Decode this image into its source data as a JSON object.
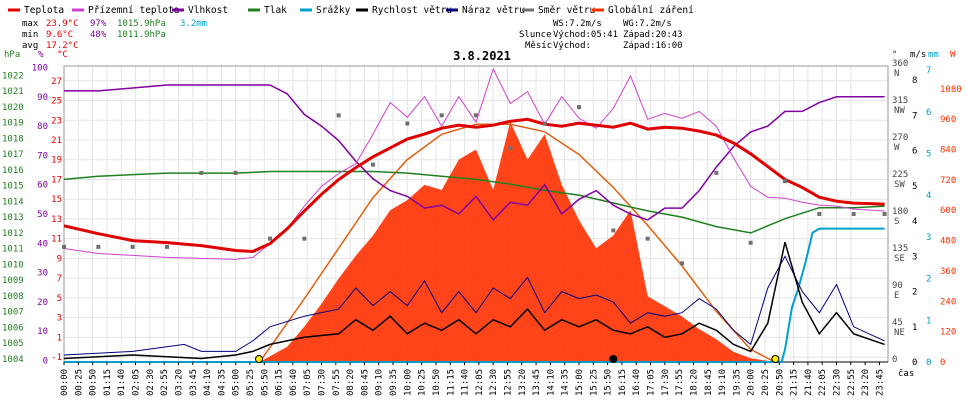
{
  "title": "3.8.2021",
  "legend": [
    {
      "label": "Teplota",
      "color": "#e00000"
    },
    {
      "label": "Přízemní teplota",
      "color": "#d040d0"
    },
    {
      "label": "Vlhkost",
      "color": "#8000a0"
    },
    {
      "label": "Tlak",
      "color": "#208020"
    },
    {
      "label": "Srážky",
      "color": "#00a0d0"
    },
    {
      "label": "Rychlost větru",
      "color": "#000000"
    },
    {
      "label": "Náraz větru",
      "color": "#000080"
    },
    {
      "label": "Směr větru",
      "color": "#707070"
    },
    {
      "label": "Globální záření",
      "color": "#ff3000"
    }
  ],
  "stats": {
    "max_label": "max",
    "max_temp": "23.9°C",
    "max_hum": "97%",
    "max_press": "1015.9hPa",
    "max_rain": "3.2mm",
    "min_label": "min",
    "min_temp": "9.6°C",
    "min_hum": "48%",
    "min_press": "1011.9hPa",
    "avg_label": "avg",
    "avg_temp": "17.2°C"
  },
  "wind_info": {
    "ws": "WS:7.2m/s",
    "wg": "WG:7.2m/s"
  },
  "sun_info": {
    "slunce": "Slunce",
    "vychod": "Východ:05:41",
    "zapad": "Západ:20:43"
  },
  "moon_info": {
    "mesic": "Měsíc",
    "vychod": "Východ:",
    "zapad": "Západ:16:00"
  },
  "x_axis_label": "čas",
  "axes": {
    "hpa_unit": "hPa",
    "pct_unit": "%",
    "temp_unit": "°C",
    "dir_unit": "°",
    "ms_unit": "m/s",
    "mm_unit": "mm",
    "w_unit": "W",
    "hpa_ticks": [
      1022,
      1021,
      1020,
      1019,
      1018,
      1017,
      1016,
      1015,
      1014,
      1013,
      1012,
      1011,
      1010,
      1009,
      1008,
      1007,
      1006,
      1005,
      1004
    ],
    "pct_ticks": [
      100,
      90,
      80,
      70,
      60,
      50,
      40,
      30,
      20,
      10,
      0
    ],
    "temp_ticks": [
      27,
      25,
      23,
      21,
      19,
      17,
      15,
      13,
      11,
      9,
      7,
      5,
      3,
      1,
      -1
    ],
    "dir_ticks": [
      {
        "deg": "360",
        "dir": "N"
      },
      {
        "deg": "315",
        "dir": "NW"
      },
      {
        "deg": "270",
        "dir": "W"
      },
      {
        "deg": "225",
        "dir": "SW"
      },
      {
        "deg": "180",
        "dir": "S"
      },
      {
        "deg": "135",
        "dir": "SE"
      },
      {
        "deg": "90",
        "dir": "E"
      },
      {
        "deg": "45",
        "dir": "NE"
      },
      {
        "deg": "0",
        "dir": ""
      }
    ],
    "ms_ticks": [
      8,
      7,
      6,
      5,
      4,
      3,
      2,
      1,
      0
    ],
    "mm_ticks": [
      7,
      6,
      5,
      4,
      3,
      2,
      1,
      0
    ],
    "w_ticks": [
      1080,
      960,
      840,
      720,
      600,
      480,
      360,
      240,
      120,
      0
    ]
  },
  "chart_data": {
    "type": "line",
    "title": "3.8.2021",
    "x_label": "čas",
    "x_ticks": [
      "00:00",
      "00:25",
      "00:50",
      "01:15",
      "01:40",
      "02:05",
      "02:30",
      "02:55",
      "03:20",
      "03:45",
      "04:10",
      "04:35",
      "05:00",
      "05:25",
      "05:50",
      "06:15",
      "06:40",
      "07:05",
      "07:30",
      "07:55",
      "08:20",
      "08:45",
      "09:10",
      "09:35",
      "10:00",
      "10:25",
      "10:50",
      "11:15",
      "11:40",
      "12:05",
      "12:30",
      "12:55",
      "13:20",
      "13:45",
      "14:10",
      "14:35",
      "15:00",
      "15:25",
      "15:50",
      "16:15",
      "16:40",
      "17:05",
      "17:30",
      "17:55",
      "18:20",
      "18:45",
      "19:10",
      "19:35",
      "20:00",
      "20:25",
      "20:50",
      "21:15",
      "21:40",
      "22:05",
      "22:30",
      "22:55",
      "23:20",
      "23:45"
    ],
    "series": [
      {
        "name": "Teplota",
        "unit": "°C",
        "color": "#e00000",
        "x": [
          0,
          1,
          2,
          3,
          4,
          5,
          5.5,
          6,
          6.5,
          7,
          7.5,
          8,
          8.5,
          9,
          9.5,
          10,
          10.5,
          11,
          11.5,
          12,
          12.5,
          13,
          13.5,
          14,
          14.5,
          15,
          15.5,
          16,
          16.5,
          17,
          17.5,
          18,
          18.5,
          19,
          19.5,
          20,
          20.5,
          21,
          21.5,
          22,
          22.5,
          23,
          23.9
        ],
        "y": [
          12.3,
          11.5,
          10.8,
          10.6,
          10.3,
          9.8,
          9.7,
          10.5,
          12,
          13.8,
          15.5,
          17,
          18.2,
          19.3,
          20.2,
          21.1,
          21.6,
          22.2,
          22.5,
          22.3,
          22.5,
          22.9,
          23.1,
          22.6,
          22.4,
          22.7,
          22.5,
          22.3,
          22.7,
          22.1,
          22.3,
          22.2,
          21.9,
          21.5,
          20.7,
          19.6,
          18.3,
          17,
          16.2,
          15.2,
          14.8,
          14.6,
          14.5
        ]
      },
      {
        "name": "Přízemní teplota",
        "unit": "°C",
        "color": "#d040d0",
        "x": [
          0,
          1,
          2,
          3,
          4,
          5,
          5.5,
          6,
          6.5,
          7,
          7.5,
          8,
          8.5,
          9,
          9.5,
          10,
          10.5,
          11,
          11.5,
          12,
          12.5,
          13,
          13.5,
          14,
          14.5,
          15,
          15.5,
          16,
          16.5,
          17,
          17.5,
          18,
          18.5,
          19,
          19.5,
          20,
          20.5,
          21,
          21.5,
          22,
          22.5,
          23,
          23.9
        ],
        "y": [
          10,
          9.5,
          9.3,
          9.1,
          9.0,
          8.9,
          9.1,
          10.5,
          12,
          14.3,
          16.3,
          17.6,
          18.6,
          21.6,
          24.8,
          23.3,
          25.4,
          22.4,
          25.4,
          22.8,
          28.2,
          24.7,
          25.9,
          22.6,
          25.4,
          23.2,
          22.2,
          24.2,
          27.5,
          23.1,
          23.7,
          23.2,
          23.9,
          22.4,
          19.2,
          16.3,
          15.2,
          15.1,
          14.7,
          14.4,
          14.3,
          14.0,
          13.8
        ]
      },
      {
        "name": "Vlhkost",
        "unit": "%",
        "color": "#8000a0",
        "x": [
          0,
          1,
          2,
          3,
          4,
          5,
          5.5,
          6,
          6.5,
          7,
          7.5,
          8,
          8.5,
          9,
          9.5,
          10,
          10.5,
          11,
          11.5,
          12,
          12.5,
          13,
          13.5,
          14,
          14.5,
          15,
          15.5,
          16,
          16.5,
          17,
          17.5,
          18,
          18.5,
          19,
          19.5,
          20,
          20.5,
          21,
          21.5,
          22,
          22.5,
          23,
          23.9
        ],
        "y": [
          92,
          92,
          93,
          94,
          94,
          94,
          94,
          94,
          91,
          84,
          80,
          75,
          68,
          62,
          58,
          56,
          52,
          53,
          50,
          56,
          48,
          54,
          53,
          60,
          50,
          55,
          58,
          53,
          50,
          48,
          52,
          52,
          58,
          66,
          73,
          78,
          80,
          85,
          85,
          88,
          90,
          90,
          90
        ]
      },
      {
        "name": "Tlak",
        "unit": "hPa",
        "color": "#208020",
        "x": [
          0,
          1,
          2,
          3,
          4,
          5,
          6,
          7,
          8,
          9,
          10,
          11,
          12,
          13,
          14,
          15,
          16,
          17,
          18,
          19,
          20,
          21,
          22,
          23,
          23.9
        ],
        "y": [
          1015.4,
          1015.6,
          1015.7,
          1015.8,
          1015.8,
          1015.8,
          1015.9,
          1015.9,
          1015.9,
          1015.9,
          1015.8,
          1015.6,
          1015.4,
          1015.1,
          1014.7,
          1014.4,
          1013.9,
          1013.4,
          1013.0,
          1012.4,
          1012.0,
          1012.9,
          1013.6,
          1013.6,
          1013.7
        ]
      },
      {
        "name": "Srážky",
        "unit": "mm",
        "color": "#00a0d0",
        "x": [
          0,
          20.9,
          21.0,
          21.2,
          21.4,
          21.6,
          21.8,
          22.0,
          23.9
        ],
        "y": [
          0,
          0,
          0.3,
          1.3,
          1.8,
          2.4,
          3.1,
          3.2,
          3.2
        ]
      },
      {
        "name": "Rychlost větru",
        "unit": "m/s",
        "color": "#000000",
        "x": [
          0,
          2,
          4,
          5,
          5.5,
          6,
          7,
          8,
          8.5,
          9,
          9.5,
          10,
          10.5,
          11,
          11.5,
          12,
          12.5,
          13,
          13.5,
          14,
          14.5,
          15,
          15.5,
          16,
          16.5,
          17,
          17.5,
          18,
          18.5,
          19,
          19.5,
          20,
          20.5,
          21,
          21.5,
          22,
          22.5,
          23,
          23.9
        ],
        "y": [
          0.1,
          0.2,
          0.1,
          0.2,
          0.3,
          0.5,
          0.7,
          0.8,
          1.2,
          0.9,
          1.3,
          0.8,
          1.1,
          0.9,
          1.2,
          0.8,
          1.2,
          1.0,
          1.5,
          0.9,
          1.2,
          1.0,
          1.2,
          0.9,
          0.8,
          1.0,
          0.7,
          0.8,
          1.1,
          0.9,
          0.5,
          0.3,
          1.1,
          3.4,
          1.7,
          0.8,
          1.4,
          0.8,
          0.5
        ]
      },
      {
        "name": "Náraz větru",
        "unit": "m/s",
        "color": "#000080",
        "x": [
          0,
          2,
          3.5,
          4,
          5,
          5.5,
          6,
          7,
          8,
          8.5,
          9,
          9.5,
          10,
          10.5,
          11,
          11.5,
          12,
          12.5,
          13,
          13.5,
          14,
          14.5,
          15,
          15.5,
          16,
          16.5,
          17,
          17.5,
          18,
          18.5,
          19,
          19.5,
          20,
          20.5,
          21,
          21.5,
          22,
          22.5,
          23,
          23.9
        ],
        "y": [
          0.2,
          0.3,
          0.5,
          0.3,
          0.3,
          0.6,
          1.0,
          1.3,
          1.5,
          2.1,
          1.6,
          2.0,
          1.6,
          2.3,
          1.4,
          2.0,
          1.4,
          2.1,
          1.8,
          2.4,
          1.4,
          2.0,
          1.8,
          1.9,
          1.7,
          1.1,
          1.4,
          1.3,
          1.4,
          1.8,
          1.5,
          0.9,
          0.5,
          2.1,
          3.0,
          2.0,
          1.4,
          2.2,
          1.0,
          0.6
        ]
      },
      {
        "name": "Globální záření",
        "unit": "W",
        "color": "#ff3000",
        "x": [
          0,
          5.7,
          6.5,
          7,
          7.5,
          8,
          8.5,
          9,
          9.5,
          10,
          10.5,
          11,
          11.5,
          12,
          12.5,
          13,
          13.5,
          14,
          14.5,
          15,
          15.5,
          16,
          16.5,
          17,
          17.5,
          18,
          18.5,
          19,
          19.5,
          20,
          20.7,
          23.9
        ],
        "y": [
          0,
          0,
          60,
          140,
          230,
          330,
          420,
          500,
          600,
          640,
          700,
          680,
          800,
          840,
          680,
          950,
          800,
          900,
          700,
          560,
          450,
          500,
          600,
          260,
          220,
          180,
          130,
          90,
          40,
          15,
          0,
          0
        ]
      }
    ],
    "extra_series": [
      {
        "name": "Směr větru",
        "unit": "°",
        "x": [
          0,
          1,
          2,
          3,
          4,
          5,
          6,
          7,
          8,
          9,
          10,
          11,
          12,
          13,
          14,
          15,
          16,
          17,
          18,
          19,
          20,
          21,
          22,
          23,
          23.9
        ],
        "y": [
          140,
          140,
          140,
          140,
          230,
          230,
          150,
          150,
          300,
          240,
          290,
          300,
          300,
          260,
          290,
          310,
          160,
          150,
          120,
          230,
          145,
          220,
          180,
          180,
          180
        ]
      },
      {
        "name": "Sluneční dráha",
        "unit": "W",
        "x": [
          5.7,
          7,
          8,
          9,
          10,
          11,
          12,
          13,
          14,
          15,
          16,
          17,
          18,
          19,
          20,
          20.7
        ],
        "y": [
          0,
          250,
          450,
          650,
          800,
          900,
          940,
          940,
          910,
          820,
          690,
          540,
          380,
          200,
          50,
          0
        ]
      }
    ],
    "left_axis": {
      "hpa": [
        1004,
        1022
      ],
      "pct": [
        0,
        100
      ],
      "temp": [
        -1,
        28
      ]
    },
    "right_axis": {
      "deg": [
        0,
        360
      ],
      "ms": [
        0,
        8
      ],
      "mm": [
        0,
        7
      ],
      "w": [
        0,
        1080
      ]
    },
    "grid": true,
    "legend_position": "top"
  }
}
